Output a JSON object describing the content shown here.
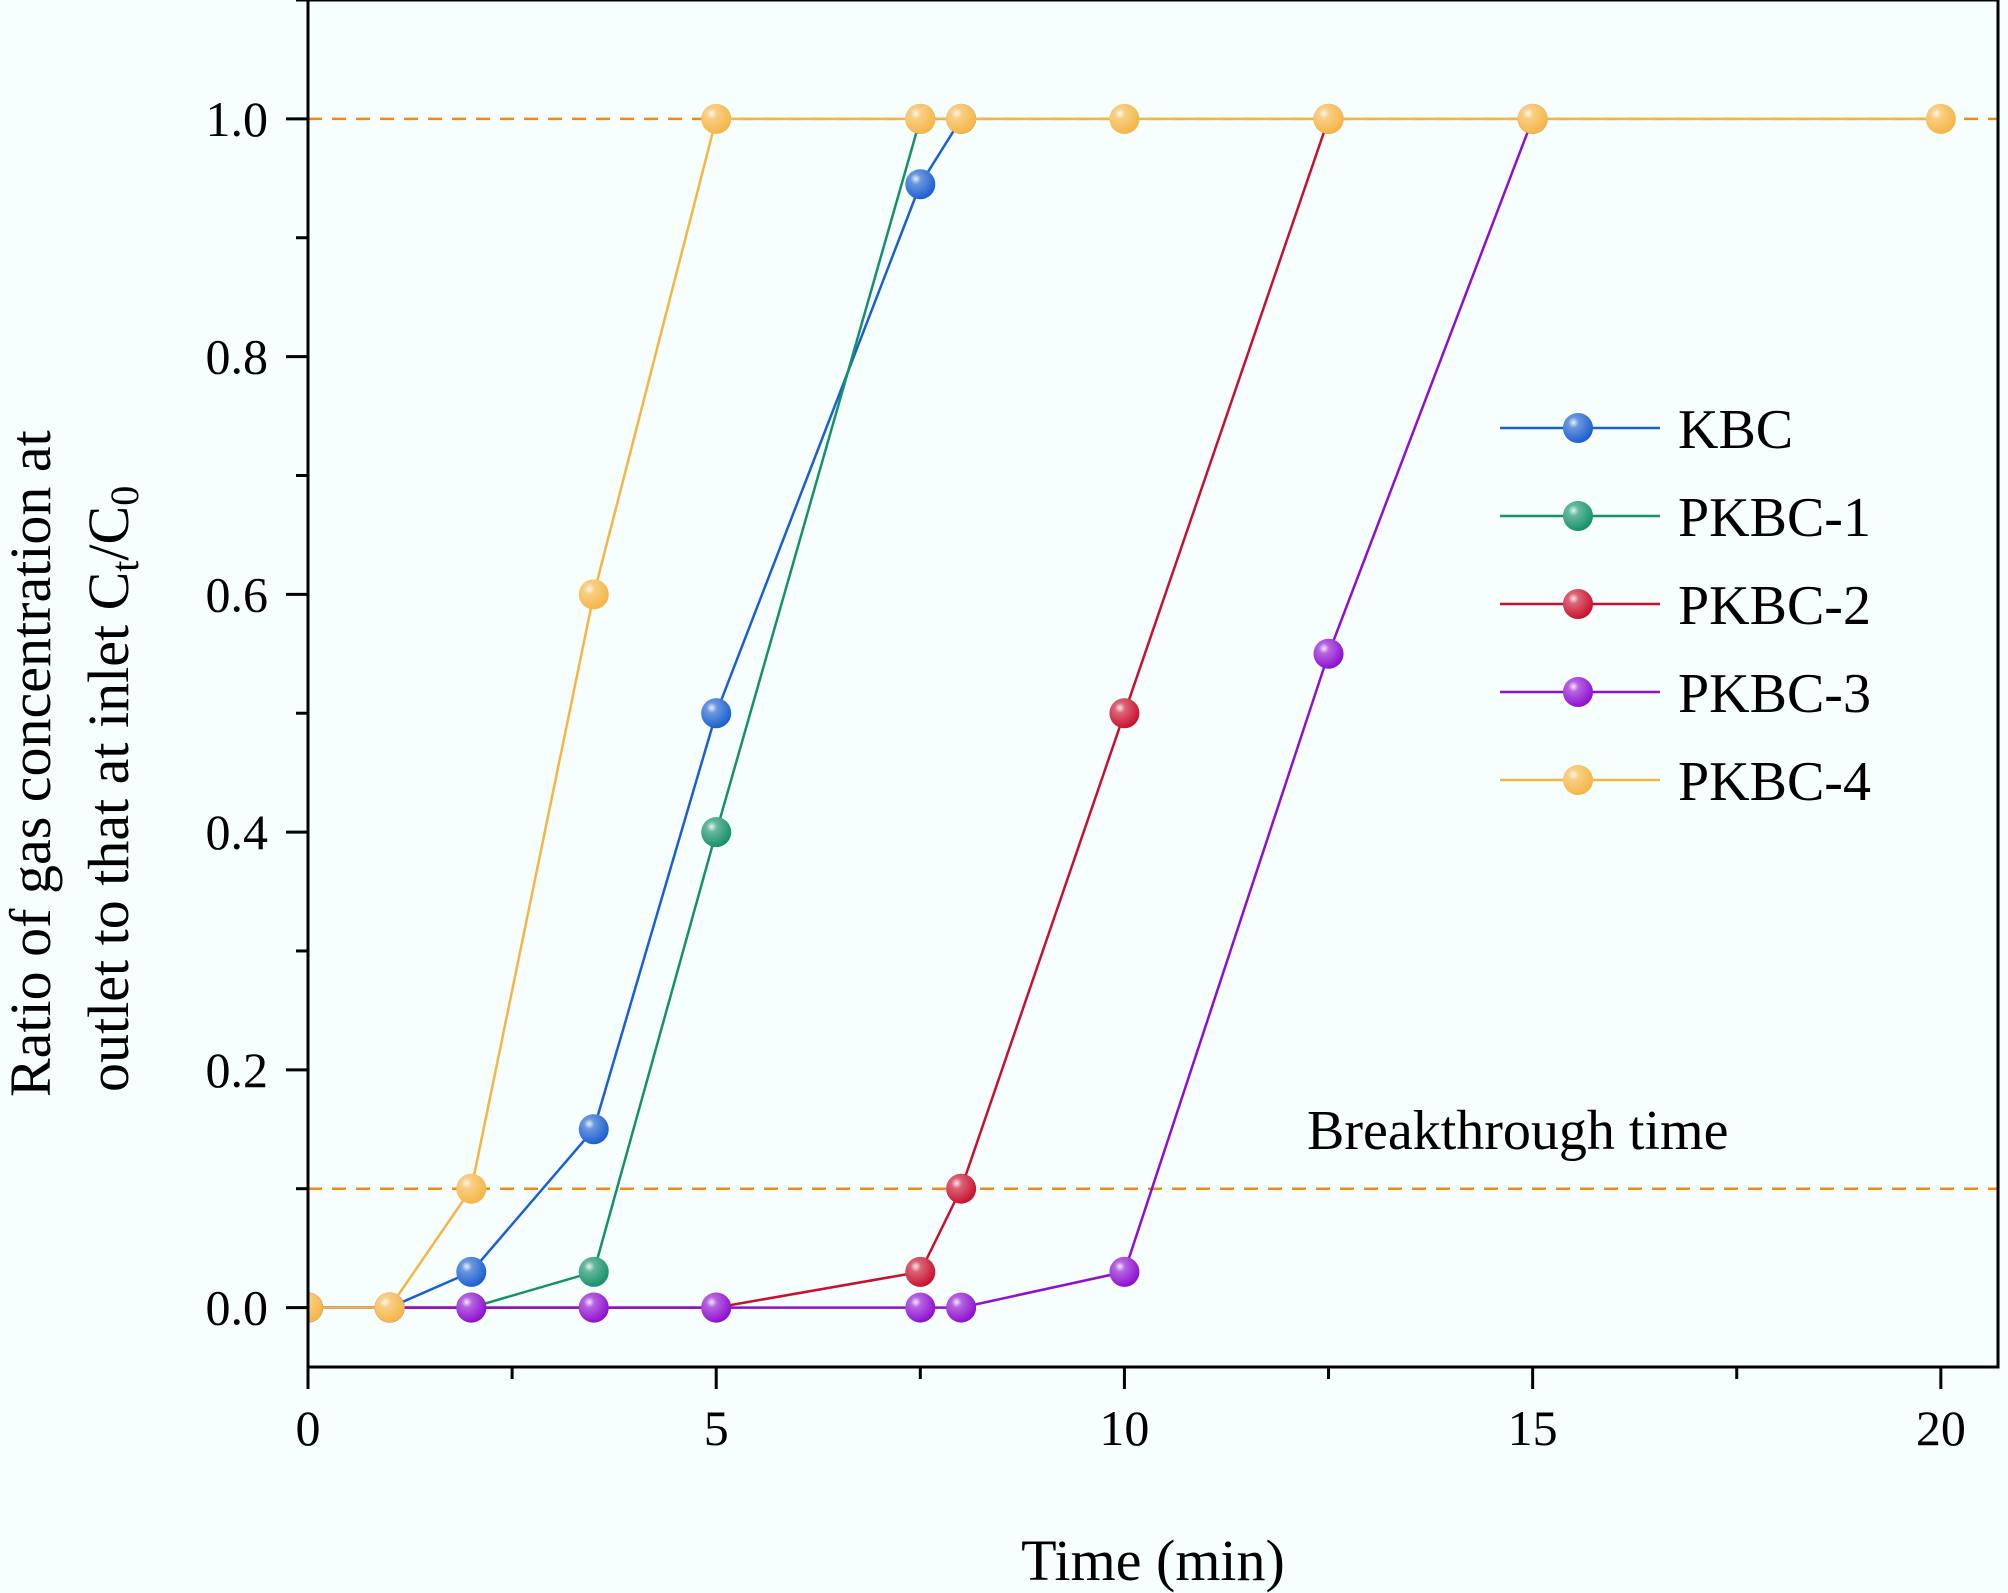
{
  "chart_data": {
    "type": "line",
    "title": "",
    "xlabel": "Time (min)",
    "ylabel": {
      "line1": "Ratio of gas concentration at",
      "line2_prefix": "outlet to that at inlet C",
      "line2_sub1": "t",
      "line2_mid": "/C",
      "line2_sub2": "0"
    },
    "xlim": [
      0,
      20.7
    ],
    "ylim": [
      -0.05,
      1.1
    ],
    "xticks": [
      0,
      5,
      10,
      15,
      20
    ],
    "xtick_labels": [
      "0",
      "5",
      "10",
      "15",
      "20"
    ],
    "yticks": [
      0.0,
      0.2,
      0.4,
      0.6,
      0.8,
      1.0
    ],
    "ytick_labels": [
      "0.0",
      "0.2",
      "0.4",
      "0.6",
      "0.8",
      "1.0"
    ],
    "legend_position": "right",
    "series": [
      {
        "name": "KBC",
        "color": "#1a5fcf",
        "x": [
          0,
          1,
          2,
          3.5,
          5,
          7.5,
          8
        ],
        "y": [
          0,
          0,
          0.03,
          0.15,
          0.5,
          0.945,
          1.0
        ]
      },
      {
        "name": "PKBC-1",
        "color": "#14916a",
        "x": [
          0,
          1,
          2,
          3.5,
          5,
          7.5
        ],
        "y": [
          0,
          0,
          0,
          0.03,
          0.4,
          1.0
        ]
      },
      {
        "name": "PKBC-2",
        "color": "#c8102e",
        "x": [
          0,
          1,
          2,
          3.5,
          5,
          7.5,
          8,
          10,
          12.5
        ],
        "y": [
          0,
          0,
          0,
          0,
          0,
          0.03,
          0.1,
          0.5,
          1.0
        ]
      },
      {
        "name": "PKBC-3",
        "color": "#8e0fd0",
        "x": [
          0,
          1,
          2,
          3.5,
          5,
          7.5,
          8,
          10,
          12.5,
          15
        ],
        "y": [
          0,
          0,
          0,
          0,
          0,
          0,
          0,
          0.03,
          0.55,
          1.0
        ]
      },
      {
        "name": "PKBC-4",
        "color": "#f5b544",
        "x": [
          0,
          1,
          2,
          3.5,
          5,
          7.5,
          8,
          10,
          12.5,
          15,
          20
        ],
        "y": [
          0,
          0,
          0.1,
          0.6,
          1.0,
          1.0,
          1.0,
          1.0,
          1.0,
          1.0,
          1.0
        ]
      }
    ],
    "reference_lines": [
      {
        "y": 1.0,
        "color": "#f08a10"
      },
      {
        "y": 0.1,
        "color": "#f08a10"
      }
    ],
    "annotations": [
      {
        "text": "Breakthrough time"
      }
    ]
  }
}
